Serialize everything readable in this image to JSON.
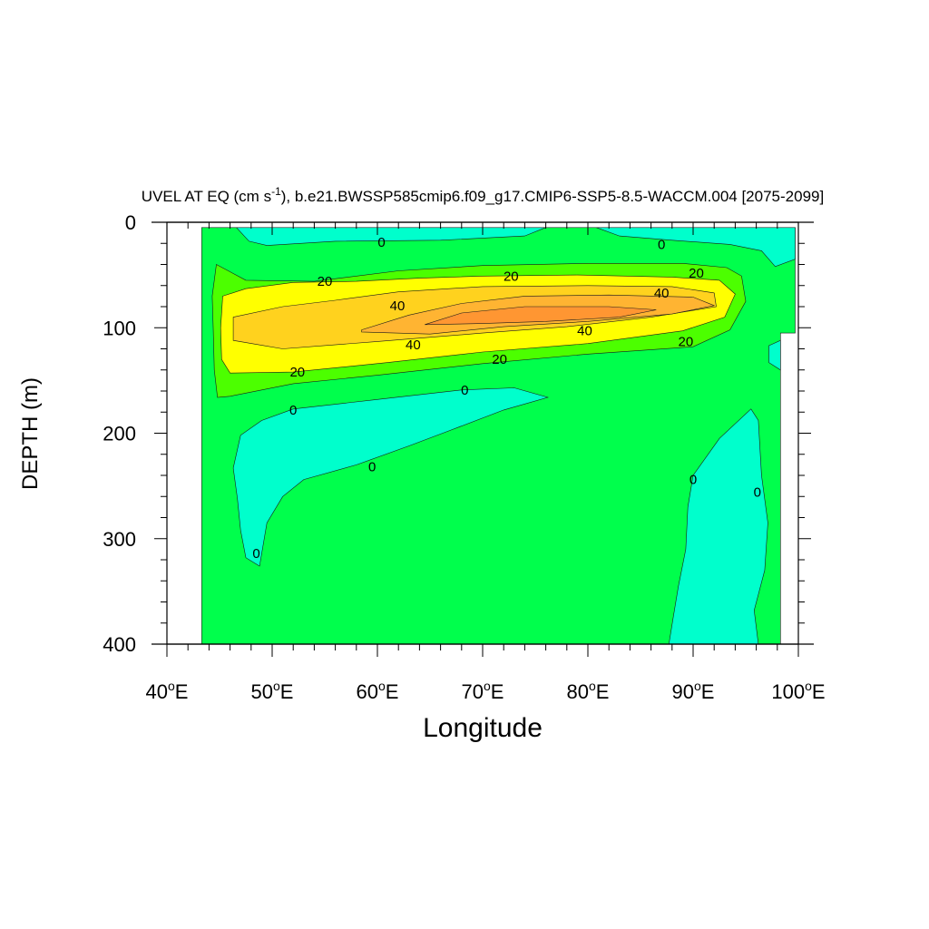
{
  "chart_data": {
    "type": "contour",
    "title": "UVEL AT EQ (cm s",
    "title_sup": "-1",
    "title_rest": "), b.e21.BWSSP585cmip6.f09_g17.CMIP6-SSP5-8.5-WACCM.004 [2075-2099]",
    "xlabel": "Longitude",
    "ylabel": "DEPTH (m)",
    "xlim": [
      40,
      100
    ],
    "ylim": [
      400,
      0
    ],
    "x_ticks": [
      {
        "value": 40,
        "num": "40",
        "deg": "o",
        "suffix": "E"
      },
      {
        "value": 50,
        "num": "50",
        "deg": "o",
        "suffix": "E"
      },
      {
        "value": 60,
        "num": "60",
        "deg": "o",
        "suffix": "E"
      },
      {
        "value": 70,
        "num": "70",
        "deg": "o",
        "suffix": "E"
      },
      {
        "value": 80,
        "num": "80",
        "deg": "o",
        "suffix": "E"
      },
      {
        "value": 90,
        "num": "90",
        "deg": "o",
        "suffix": "E"
      },
      {
        "value": 100,
        "num": "100",
        "deg": "o",
        "suffix": "E"
      }
    ],
    "y_ticks": [
      {
        "value": 0,
        "label": "0"
      },
      {
        "value": 100,
        "label": "100"
      },
      {
        "value": 200,
        "label": "200"
      },
      {
        "value": 300,
        "label": "300"
      },
      {
        "value": 400,
        "label": "400"
      }
    ],
    "contour_levels": [
      0,
      20,
      40
    ],
    "fill_colors": {
      "negative": "#00ffcc",
      "zero_to_10": "#00ff4c",
      "ten_to_20": "#4cff00",
      "twenty_to_30": "#ffff00",
      "thirty_to_40": "#ffd21e",
      "forty_to_50": "#ffb432",
      "above_50": "#ff9632"
    },
    "regions": [
      {
        "name": "ocean-domain",
        "fill": "#00ff4c",
        "points": [
          [
            43.3,
            5
          ],
          [
            99.7,
            5
          ],
          [
            99.7,
            105
          ],
          [
            98.3,
            105
          ],
          [
            98.3,
            400
          ],
          [
            43.3,
            400
          ]
        ]
      },
      {
        "name": "surface-negative",
        "fill": "#00ffcc",
        "points": [
          [
            46.6,
            5
          ],
          [
            76,
            5
          ],
          [
            74,
            13
          ],
          [
            66,
            17
          ],
          [
            56,
            18
          ],
          [
            49.5,
            22
          ],
          [
            47.8,
            18
          ]
        ]
      },
      {
        "name": "surface-negative-east",
        "fill": "#00ffcc",
        "points": [
          [
            80.8,
            5
          ],
          [
            99.7,
            5
          ],
          [
            99.7,
            35
          ],
          [
            97.8,
            42
          ],
          [
            96.5,
            27
          ],
          [
            93.5,
            21
          ],
          [
            88,
            17
          ],
          [
            83,
            13
          ]
        ]
      },
      {
        "name": "subsurface-negative-west",
        "fill": "#00ffcc",
        "points": [
          [
            52,
            177
          ],
          [
            60,
            168
          ],
          [
            68,
            159
          ],
          [
            73,
            157
          ],
          [
            76.2,
            166
          ],
          [
            72,
            178
          ],
          [
            67,
            197
          ],
          [
            63,
            212
          ],
          [
            58,
            230
          ],
          [
            53,
            244
          ],
          [
            51,
            260
          ],
          [
            49.5,
            285
          ],
          [
            48.8,
            326
          ],
          [
            47.5,
            318
          ],
          [
            47,
            292
          ],
          [
            46.7,
            262
          ],
          [
            46.3,
            233
          ],
          [
            47,
            202
          ],
          [
            49,
            188
          ]
        ]
      },
      {
        "name": "deep-negative-east",
        "fill": "#00ffcc",
        "points": [
          [
            87.7,
            400
          ],
          [
            88.1,
            375
          ],
          [
            88.6,
            345
          ],
          [
            89.3,
            310
          ],
          [
            89.5,
            270
          ],
          [
            90,
            240
          ],
          [
            92.5,
            205
          ],
          [
            95.5,
            177
          ],
          [
            96.2,
            188
          ],
          [
            96.5,
            240
          ],
          [
            97.1,
            285
          ],
          [
            96.8,
            330
          ],
          [
            95.8,
            368
          ],
          [
            96.2,
            400
          ]
        ]
      },
      {
        "name": "far-east-negative",
        "fill": "#00ffcc",
        "points": [
          [
            97.2,
            117
          ],
          [
            98.3,
            112
          ],
          [
            98.3,
            140
          ],
          [
            97.2,
            133
          ]
        ]
      },
      {
        "name": "band-10",
        "fill": "#4cff00",
        "points": [
          [
            44.7,
            40
          ],
          [
            47.5,
            55
          ],
          [
            54,
            56
          ],
          [
            62,
            46
          ],
          [
            70,
            41
          ],
          [
            80,
            39
          ],
          [
            89,
            39
          ],
          [
            93.2,
            43
          ],
          [
            94.6,
            51
          ],
          [
            95,
            75
          ],
          [
            93.5,
            102
          ],
          [
            90,
            118
          ],
          [
            80,
            125
          ],
          [
            70,
            134
          ],
          [
            60,
            145
          ],
          [
            52,
            153
          ],
          [
            46,
            165
          ],
          [
            44.8,
            166
          ],
          [
            44.5,
            140
          ],
          [
            44.4,
            100
          ],
          [
            44.3,
            70
          ]
        ]
      },
      {
        "name": "band-20",
        "fill": "#ffff00",
        "points": [
          [
            45.3,
            70
          ],
          [
            47.5,
            63
          ],
          [
            52,
            57
          ],
          [
            58,
            56
          ],
          [
            64,
            53
          ],
          [
            70,
            51
          ],
          [
            79,
            50
          ],
          [
            88,
            52
          ],
          [
            92.5,
            55
          ],
          [
            94,
            68
          ],
          [
            93,
            90
          ],
          [
            89,
            103
          ],
          [
            80,
            115
          ],
          [
            70,
            123
          ],
          [
            61,
            133
          ],
          [
            52,
            142
          ],
          [
            46,
            143
          ],
          [
            45.2,
            130
          ],
          [
            45.1,
            100
          ]
        ]
      },
      {
        "name": "band-30",
        "fill": "#ffd21e",
        "points": [
          [
            46.3,
            90
          ],
          [
            51,
            80
          ],
          [
            56,
            74
          ],
          [
            62,
            66
          ],
          [
            70,
            61
          ],
          [
            80,
            60
          ],
          [
            88,
            61
          ],
          [
            92,
            67
          ],
          [
            92.2,
            80
          ],
          [
            86,
            90
          ],
          [
            78,
            99
          ],
          [
            70,
            105
          ],
          [
            60,
            113
          ],
          [
            51,
            120
          ],
          [
            46.3,
            112
          ]
        ]
      },
      {
        "name": "band-40",
        "fill": "#ffb432",
        "points": [
          [
            58.5,
            102
          ],
          [
            63,
            88
          ],
          [
            68,
            77
          ],
          [
            74,
            70
          ],
          [
            82,
            69
          ],
          [
            90,
            71
          ],
          [
            92,
            79
          ],
          [
            88,
            87
          ],
          [
            80,
            94
          ],
          [
            72,
            99
          ],
          [
            65,
            106
          ],
          [
            58.5,
            104
          ]
        ]
      },
      {
        "name": "band-50",
        "fill": "#ff9632",
        "points": [
          [
            64.5,
            97
          ],
          [
            68,
            86
          ],
          [
            74,
            80
          ],
          [
            82,
            80
          ],
          [
            86.5,
            83
          ],
          [
            83,
            90
          ],
          [
            76,
            94
          ],
          [
            70,
            96
          ]
        ]
      }
    ],
    "contour_labels": [
      {
        "text": "0",
        "x": 60.4,
        "y": 19
      },
      {
        "text": "0",
        "x": 87.0,
        "y": 21
      },
      {
        "text": "20",
        "x": 55.0,
        "y": 56
      },
      {
        "text": "20",
        "x": 72.7,
        "y": 51
      },
      {
        "text": "20",
        "x": 90.3,
        "y": 48
      },
      {
        "text": "40",
        "x": 61.9,
        "y": 79
      },
      {
        "text": "40",
        "x": 87.0,
        "y": 67
      },
      {
        "text": "40",
        "x": 63.4,
        "y": 116
      },
      {
        "text": "40",
        "x": 79.7,
        "y": 103
      },
      {
        "text": "20",
        "x": 89.3,
        "y": 113
      },
      {
        "text": "20",
        "x": 71.6,
        "y": 130
      },
      {
        "text": "20",
        "x": 52.4,
        "y": 142
      },
      {
        "text": "0",
        "x": 68.3,
        "y": 159
      },
      {
        "text": "0",
        "x": 52.0,
        "y": 178
      },
      {
        "text": "0",
        "x": 59.5,
        "y": 232
      },
      {
        "text": "0",
        "x": 90.0,
        "y": 244
      },
      {
        "text": "0",
        "x": 96.1,
        "y": 256
      },
      {
        "text": "0",
        "x": 48.5,
        "y": 314
      }
    ]
  }
}
